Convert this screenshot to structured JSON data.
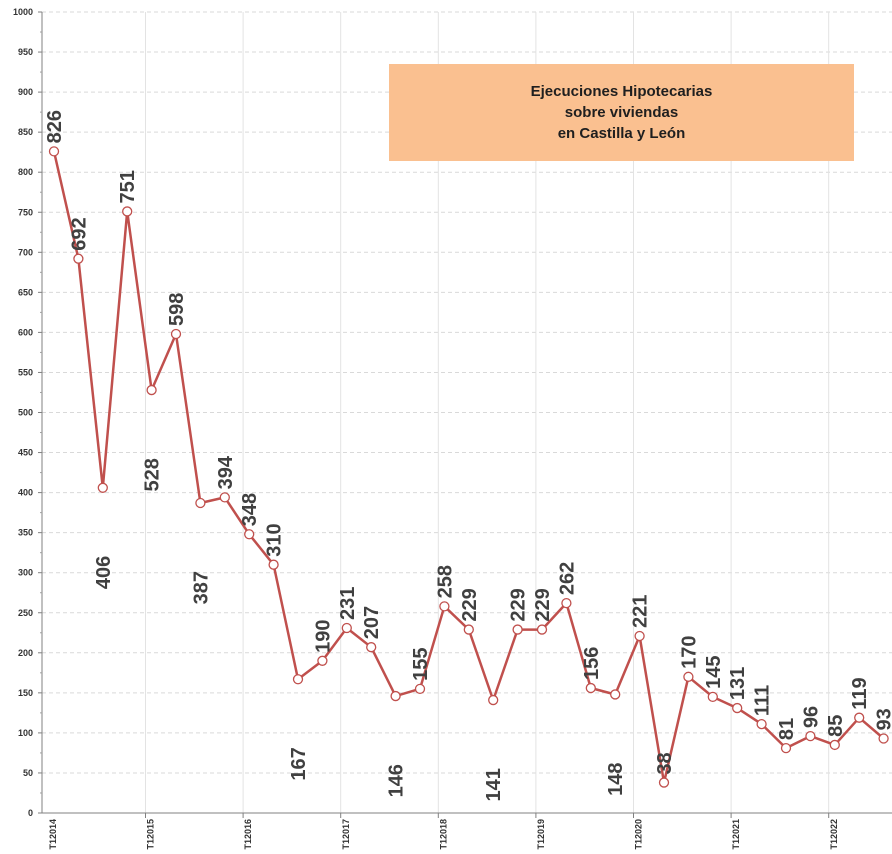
{
  "chart_data": {
    "type": "line",
    "title_lines": [
      "Ejecuciones Hipotecarias",
      "sobre viviendas",
      "en Castilla y León"
    ],
    "ylim": [
      0,
      1000
    ],
    "y_ticks": [
      0,
      50,
      100,
      150,
      200,
      250,
      300,
      350,
      400,
      450,
      500,
      550,
      600,
      650,
      700,
      750,
      800,
      850,
      900,
      950,
      1000
    ],
    "x_tick_labels": [
      "T12014",
      "T12015",
      "T12016",
      "T12017",
      "T12018",
      "T12019",
      "T12020",
      "T12021",
      "T12022"
    ],
    "values": [
      826,
      692,
      406,
      751,
      528,
      598,
      387,
      394,
      348,
      310,
      167,
      190,
      231,
      207,
      146,
      155,
      258,
      229,
      141,
      229,
      229,
      262,
      156,
      148,
      221,
      38,
      170,
      145,
      131,
      111,
      81,
      96,
      85,
      119,
      93
    ],
    "grid": true,
    "line_color": "#c0504d",
    "marker_fill": "#ffffff",
    "title_box_color": "#fac090"
  }
}
